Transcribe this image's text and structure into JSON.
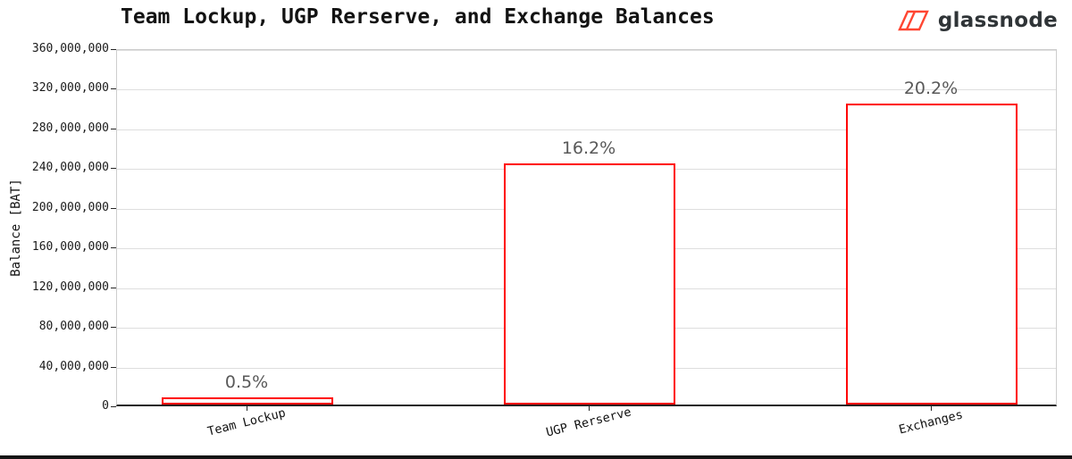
{
  "header": {
    "brand": "glassnode"
  },
  "chart_data": {
    "type": "bar",
    "title": "Team Lockup, UGP Rerserve, and Exchange Balances",
    "categories": [
      "Team Lockup",
      "UGP Rerserve",
      "Exchanges"
    ],
    "values": [
      7500000,
      243000000,
      303000000
    ],
    "bar_labels": [
      "0.5%",
      "16.2%",
      "20.2%"
    ],
    "xlabel": "",
    "ylabel": "Balance [BAT]",
    "ylim": [
      0,
      360000000
    ],
    "ytick_step": 40000000,
    "ytick_labels": [
      "0",
      "40,000,000",
      "80,000,000",
      "120,000,000",
      "160,000,000",
      "200,000,000",
      "240,000,000",
      "280,000,000",
      "320,000,000",
      "360,000,000"
    ],
    "grid": true,
    "legend": false,
    "bar_fill": "#ffffff",
    "bar_border": "#ff0000"
  },
  "colors": {
    "brand_red": "#ff4632",
    "brand_text": "#2f3437",
    "grid": "#dedede",
    "axis": "#222222",
    "value_label_gray": "#595959"
  }
}
